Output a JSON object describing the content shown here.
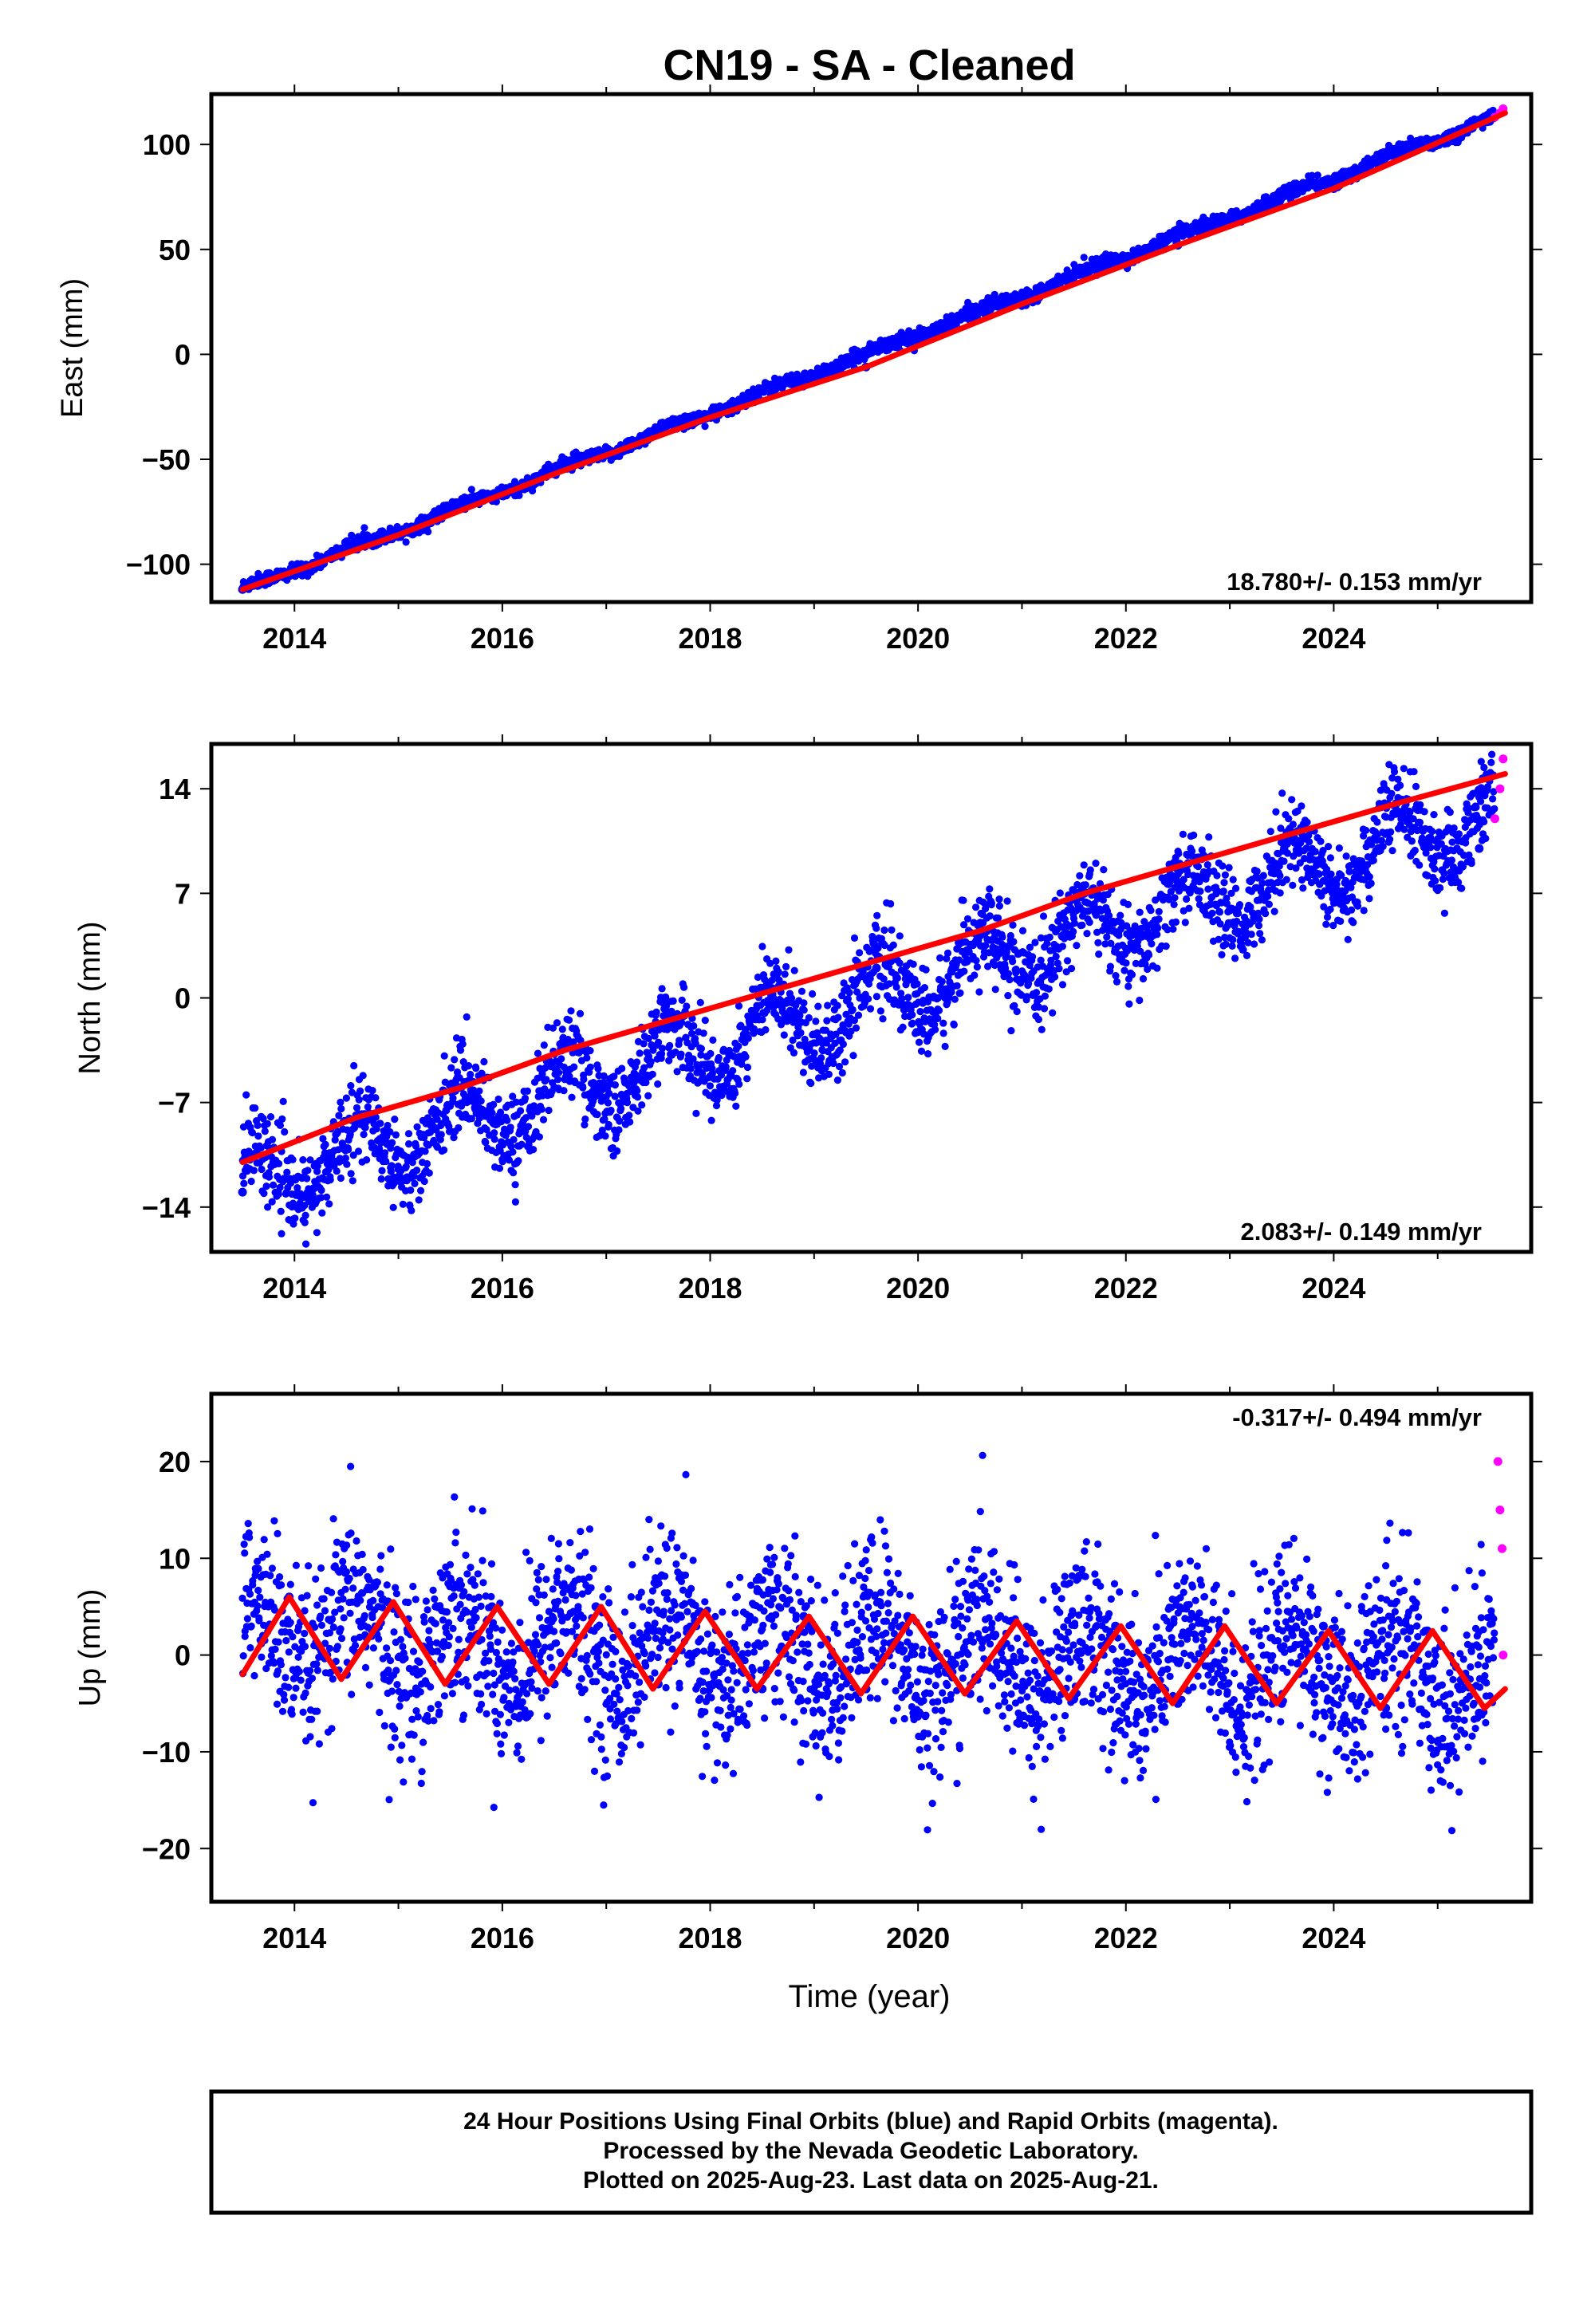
{
  "page": {
    "title": "CN19  - SA - Cleaned",
    "footer": [
      "24 Hour Positions Using Final Orbits (blue) and Rapid Orbits (magenta).",
      "Processed by the Nevada Geodetic Laboratory.",
      "Plotted on 2025-Aug-23. Last data on 2025-Aug-21."
    ]
  },
  "colors": {
    "final": "#0000ff",
    "rapid": "#ff00ff",
    "model": "#ff0000"
  },
  "chart_data": [
    {
      "type": "scatter",
      "ylabel": "East (mm)",
      "xlabel": "",
      "xlim": [
        2013.2,
        2025.9
      ],
      "ylim": [
        -118,
        124
      ],
      "xticks": [
        2014,
        2016,
        2018,
        2020,
        2022,
        2024
      ],
      "xtick_labels": [
        "2014",
        "2016",
        "2018",
        "2020",
        "2022",
        "2024"
      ],
      "yticks": [
        -100,
        -50,
        0,
        50,
        100
      ],
      "ytick_labels": [
        "−100",
        "−50",
        "0",
        "50",
        "100"
      ],
      "rate_label": "18.780+/- 0.153 mm/yr",
      "rate_position": "bottom-right",
      "trend": {
        "t0": 2013.5,
        "t1": 2025.65,
        "y0": -112,
        "y1": 115,
        "seasonal_amp": 1.5,
        "noise": 1.6
      },
      "series": [
        {
          "name": "",
          "color": "#0000ff",
          "x": [
            2013.5,
            2015.0,
            2016.5,
            2018.0,
            2019.5,
            2021.0,
            2022.5,
            2024.0,
            2025.5
          ],
          "y": [
            -112,
            -86,
            -57,
            -30,
            -6,
            24,
            52,
            79,
            111
          ]
        },
        {
          "name": "",
          "color": "#ff00ff",
          "x": [
            2025.55,
            2025.6,
            2025.63
          ],
          "y": [
            113,
            115,
            117
          ]
        },
        {
          "name": "",
          "color": "#ff0000",
          "line": true,
          "x": [
            2013.5,
            2015.0,
            2016.5,
            2018.0,
            2019.5,
            2021.0,
            2022.5,
            2024.0,
            2025.65
          ],
          "y": [
            -112,
            -86,
            -57,
            -30,
            -6,
            24,
            52,
            79,
            115
          ]
        }
      ]
    },
    {
      "type": "scatter",
      "ylabel": "North (mm)",
      "xlabel": "",
      "xlim": [
        2013.2,
        2025.9
      ],
      "ylim": [
        -17,
        17
      ],
      "xticks": [
        2014,
        2016,
        2018,
        2020,
        2022,
        2024
      ],
      "xtick_labels": [
        "2014",
        "2016",
        "2018",
        "2020",
        "2022",
        "2024"
      ],
      "yticks": [
        -14,
        -7,
        0,
        7,
        14
      ],
      "ytick_labels": [
        "−14",
        "−7",
        "0",
        "7",
        "14"
      ],
      "rate_label": "2.083+/- 0.149 mm/yr",
      "rate_position": "bottom-right",
      "trend": {
        "t0": 2013.5,
        "t1": 2025.65,
        "y0": -12.5,
        "y1": 12.5,
        "seasonal_amp": 2.3,
        "noise": 1.4
      },
      "series": [
        {
          "name": "",
          "color": "#0000ff",
          "x": [
            2013.5,
            2014.6,
            2015.6,
            2016.6,
            2017.6,
            2018.6,
            2019.6,
            2020.6,
            2021.6,
            2022.6,
            2023.6,
            2024.6,
            2025.4
          ],
          "y": [
            -13,
            -8,
            -6,
            -3,
            -1,
            0,
            2,
            5,
            7,
            9,
            11,
            13,
            10
          ]
        },
        {
          "name": "",
          "color": "#ff00ff",
          "x": [
            2025.55,
            2025.6,
            2025.63
          ],
          "y": [
            12,
            14,
            16
          ]
        },
        {
          "name": "",
          "color": "#ff0000",
          "line": true,
          "x": [
            2013.5,
            2014.6,
            2015.6,
            2016.6,
            2017.6,
            2018.6,
            2019.6,
            2020.6,
            2021.6,
            2022.6,
            2023.6,
            2024.6,
            2025.65
          ],
          "y": [
            -11,
            -8,
            -6,
            -3.5,
            -1.5,
            0.5,
            2.5,
            4.5,
            7,
            9,
            11,
            13,
            15
          ]
        }
      ]
    },
    {
      "type": "scatter",
      "ylabel": "Up (mm)",
      "xlabel": "Time (year)",
      "xlim": [
        2013.2,
        2025.9
      ],
      "ylim": [
        -25.5,
        27
      ],
      "xticks": [
        2014,
        2016,
        2018,
        2020,
        2022,
        2024
      ],
      "xtick_labels": [
        "2014",
        "2016",
        "2018",
        "2020",
        "2022",
        "2024"
      ],
      "yticks": [
        -20,
        -10,
        0,
        10,
        20
      ],
      "ytick_labels": [
        "−20",
        "−10",
        "0",
        "10",
        "20"
      ],
      "rate_label": "-0.317+/- 0.494 mm/yr",
      "rate_position": "top-right",
      "trend": {
        "t0": 2013.5,
        "t1": 2025.65,
        "y0": 2.0,
        "y1": -2.0,
        "seasonal_amp": 4.0,
        "noise": 4.5
      },
      "series": [
        {
          "name": "",
          "color": "#0000ff",
          "x": [
            2013.95,
            2014.5,
            2014.9,
            2015.5,
            2015.9,
            2016.5,
            2016.9,
            2017.5,
            2017.9,
            2018.5,
            2018.9,
            2019.5,
            2019.9,
            2020.5,
            2020.9,
            2021.5,
            2021.9,
            2022.5,
            2022.9,
            2023.5,
            2023.9,
            2024.5,
            2024.9,
            2025.4
          ],
          "y": [
            6,
            -2,
            5.5,
            -3,
            5,
            -3,
            5,
            -3,
            4.5,
            -3.5,
            4,
            -3.5,
            4,
            -4,
            3.5,
            -4.5,
            3,
            -5,
            3,
            -5,
            3,
            -5.5,
            2.5,
            -6
          ]
        },
        {
          "name": "",
          "color": "#ff00ff",
          "x": [
            2025.58,
            2025.6,
            2025.62,
            2025.63
          ],
          "y": [
            20,
            15,
            11,
            0
          ]
        },
        {
          "name": "",
          "color": "#ff0000",
          "line": true,
          "x": [
            2013.5,
            2013.95,
            2014.45,
            2014.95,
            2015.45,
            2015.95,
            2016.45,
            2016.95,
            2017.45,
            2017.95,
            2018.45,
            2018.95,
            2019.45,
            2019.95,
            2020.45,
            2020.95,
            2021.45,
            2021.95,
            2022.45,
            2022.95,
            2023.45,
            2023.95,
            2024.45,
            2024.95,
            2025.45,
            2025.65
          ],
          "y": [
            -2,
            6,
            -2.5,
            5.5,
            -3,
            5,
            -3,
            5,
            -3.5,
            4.5,
            -3.5,
            4,
            -4,
            4,
            -4,
            3.5,
            -4.5,
            3,
            -5,
            3,
            -5,
            2.5,
            -5.5,
            2.5,
            -5.5,
            -3.5
          ]
        }
      ]
    }
  ]
}
